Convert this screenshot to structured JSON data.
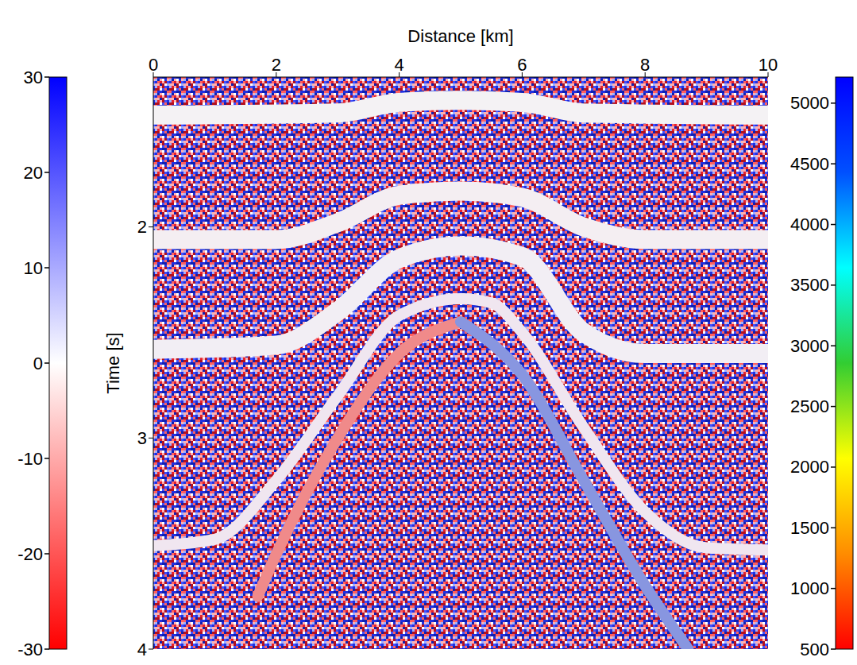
{
  "chart_data": {
    "type": "line",
    "x_label": "Distance [km]",
    "y_label": "Time [s]",
    "xlim": [
      0,
      10
    ],
    "xticks": [
      0,
      2,
      4,
      6,
      8,
      10
    ],
    "ylim": [
      1.29,
      4
    ],
    "yticks": [
      2,
      3,
      4
    ],
    "series": [
      {
        "color": "#f4f2f4",
        "x": [
          0,
          3,
          4,
          5,
          6,
          7,
          10
        ],
        "values": [
          1.47,
          1.46,
          1.41,
          1.4,
          1.41,
          1.46,
          1.47
        ]
      },
      {
        "color": "#f4eef2",
        "x": [
          0,
          2,
          3,
          4,
          5,
          6,
          7,
          8,
          10
        ],
        "values": [
          2.06,
          2.06,
          1.98,
          1.85,
          1.83,
          1.86,
          2.0,
          2.06,
          2.06
        ]
      },
      {
        "color": "#f2eef4",
        "x": [
          0,
          2,
          3,
          4,
          5,
          6,
          7,
          8,
          10
        ],
        "values": [
          2.58,
          2.56,
          2.4,
          2.15,
          2.09,
          2.14,
          2.5,
          2.6,
          2.6
        ]
      },
      {
        "color": "#f0e6f0",
        "x": [
          0,
          1,
          2,
          3,
          4,
          5,
          5.5,
          6,
          7,
          8,
          9,
          10
        ],
        "values": [
          3.51,
          3.48,
          3.2,
          2.8,
          2.42,
          2.34,
          2.36,
          2.5,
          2.95,
          3.35,
          3.52,
          3.53
        ]
      },
      {
        "color": "#f08a8a",
        "x": [
          1.7,
          2,
          3,
          4,
          5
        ],
        "values": [
          3.75,
          3.55,
          3.0,
          2.6,
          2.45
        ]
      },
      {
        "color": "#8896e0",
        "x": [
          5,
          6,
          7,
          8,
          8.7
        ],
        "values": [
          2.45,
          2.7,
          3.2,
          3.7,
          4.0
        ]
      }
    ],
    "colorbars": [
      {
        "range": [
          -30,
          30
        ],
        "ticks": [
          -30,
          -20,
          -10,
          0,
          10,
          20,
          30
        ],
        "colors": [
          "#ff0000",
          "#ffffff",
          "#0000ff"
        ]
      },
      {
        "range": [
          500,
          5215
        ],
        "ticks": [
          500,
          1000,
          1500,
          2000,
          2500,
          3000,
          3500,
          4000,
          4500,
          5000
        ],
        "colors": [
          "#ff0000",
          "#ff8c00",
          "#ffff00",
          "#32cd32",
          "#00ffff",
          "#0050ff",
          "#0000ff"
        ]
      }
    ]
  }
}
